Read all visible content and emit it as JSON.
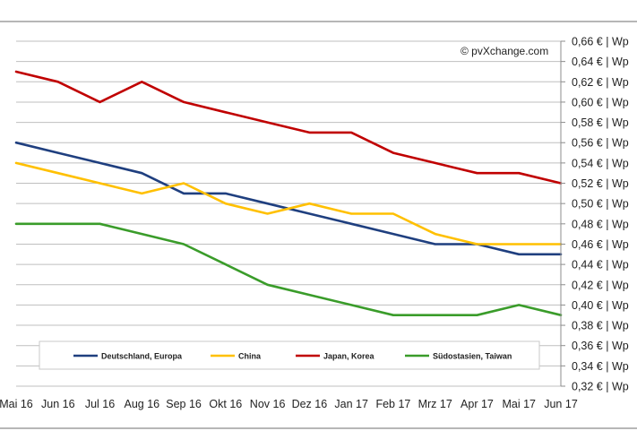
{
  "chart_data": {
    "type": "line",
    "x": [
      "Mai 16",
      "Jun 16",
      "Jul 16",
      "Aug 16",
      "Sep 16",
      "Okt 16",
      "Nov 16",
      "Dez 16",
      "Jan 17",
      "Feb 17",
      "Mrz 17",
      "Apr 17",
      "Mai 17",
      "Jun 17"
    ],
    "ylim": [
      0.32,
      0.66
    ],
    "ytick_step": 0.02,
    "y_ticks": [
      "0,66 € | Wp",
      "0,64 € | Wp",
      "0,62 € | Wp",
      "0,60 € | Wp",
      "0,58 € | Wp",
      "0,56 € | Wp",
      "0,54 € | Wp",
      "0,52 € | Wp",
      "0,50 € | Wp",
      "0,48 € | Wp",
      "0,46 € | Wp",
      "0,44 € | Wp",
      "0,42 € | Wp",
      "0,40 € | Wp",
      "0,38 € | Wp",
      "0,36 € | Wp",
      "0,34 € | Wp",
      "0,32 € | Wp"
    ],
    "y_axis_position": "right",
    "grid": true,
    "legend_position": "bottom-inside",
    "annotation": "© pvXchange.com",
    "series": [
      {
        "name": "Deutschland, Europa",
        "color": "#1f3f7f",
        "values": [
          0.56,
          0.55,
          0.54,
          0.53,
          0.51,
          0.51,
          0.5,
          0.49,
          0.48,
          0.47,
          0.46,
          0.46,
          0.45,
          0.45
        ]
      },
      {
        "name": "China",
        "color": "#ffc000",
        "values": [
          0.54,
          0.53,
          0.52,
          0.51,
          0.52,
          0.5,
          0.49,
          0.5,
          0.49,
          0.49,
          0.47,
          0.46,
          0.46,
          0.46
        ]
      },
      {
        "name": "Japan, Korea",
        "color": "#c00000",
        "values": [
          0.63,
          0.62,
          0.6,
          0.62,
          0.6,
          0.59,
          0.58,
          0.57,
          0.57,
          0.55,
          0.54,
          0.53,
          0.53,
          0.52
        ]
      },
      {
        "name": "Südostasien, Taiwan",
        "color": "#3a9c2a",
        "values": [
          0.48,
          0.48,
          0.48,
          0.47,
          0.46,
          0.44,
          0.42,
          0.41,
          0.4,
          0.39,
          0.39,
          0.39,
          0.4,
          0.39
        ]
      }
    ]
  }
}
